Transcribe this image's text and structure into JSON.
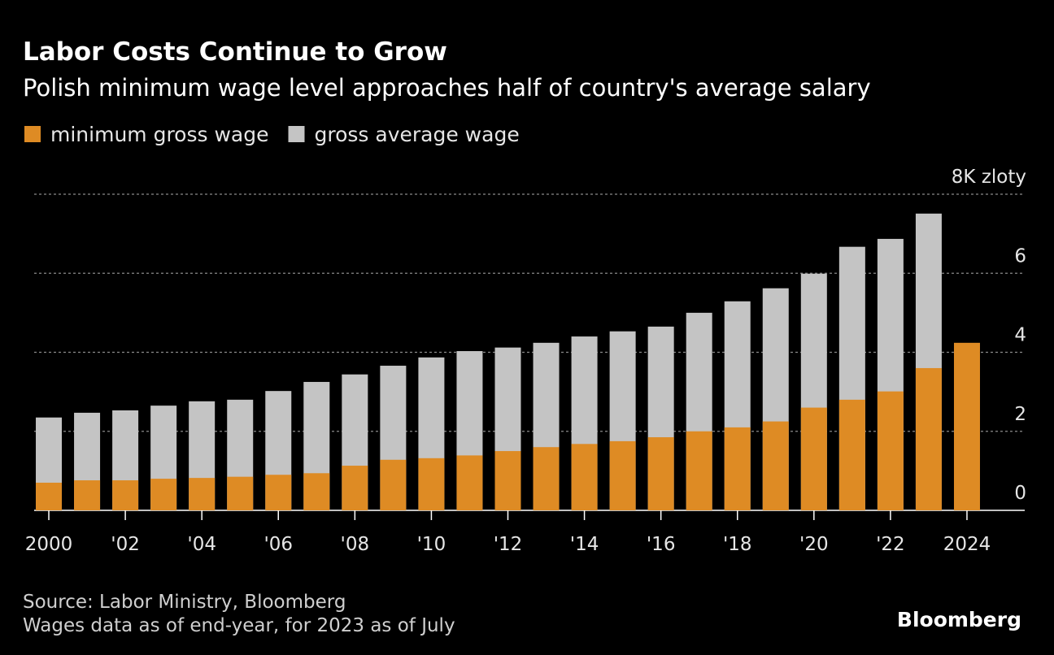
{
  "chart_data": {
    "type": "bar",
    "title": "Labor Costs Continue to Grow",
    "subtitle": "Polish minimum wage level approaches half of country's average salary",
    "categories": [
      "2000",
      null,
      "'02",
      null,
      "'04",
      null,
      "'06",
      null,
      "'08",
      null,
      "'10",
      null,
      "'12",
      null,
      "'14",
      null,
      "'16",
      null,
      "'18",
      null,
      "'20",
      null,
      "'22",
      null,
      "2024"
    ],
    "series": [
      {
        "name": "minimum gross wage",
        "color": "#de8b24",
        "values": [
          0.7,
          0.76,
          0.76,
          0.8,
          0.82,
          0.85,
          0.9,
          0.94,
          1.13,
          1.28,
          1.32,
          1.39,
          1.5,
          1.6,
          1.68,
          1.75,
          1.85,
          2.0,
          2.1,
          2.25,
          2.6,
          2.8,
          3.01,
          3.6,
          4.24
        ]
      },
      {
        "name": "gross average wage",
        "color": "#c4c4c4",
        "values": [
          2.35,
          2.47,
          2.53,
          2.65,
          2.76,
          2.8,
          3.02,
          3.25,
          3.44,
          3.66,
          3.87,
          4.03,
          4.12,
          4.24,
          4.4,
          4.53,
          4.65,
          5.0,
          5.29,
          5.62,
          5.99,
          6.67,
          6.87,
          7.51,
          null
        ]
      }
    ],
    "ylim": [
      0,
      8
    ],
    "yticks": [
      0,
      2,
      4,
      6,
      {
        "value": 8,
        "label": "8K zloty"
      }
    ],
    "grid": true,
    "legend": "top-left",
    "source": "Source: Labor Ministry, Bloomberg",
    "note": "Wages data as of end-year, for 2023 as of July",
    "brand": "Bloomberg"
  }
}
